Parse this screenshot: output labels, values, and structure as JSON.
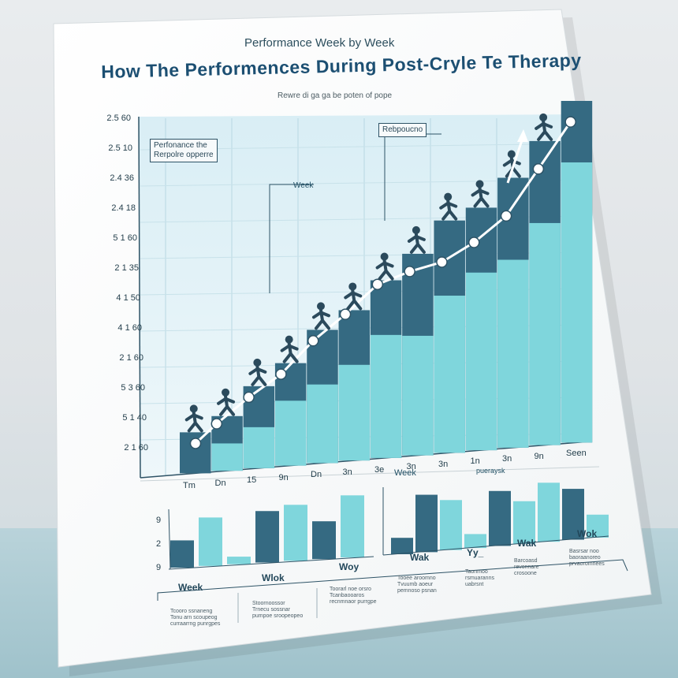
{
  "poster": {
    "supertitle": "Performance  Week by Week",
    "title": "How The Performences During Post-Cryle Te Therapy",
    "subtitle": "Rewre di ga ga be poten of pope"
  },
  "annotations": {
    "box_left_line1": "Perfonance the",
    "box_left_line2": "Rerpolre opperre",
    "box_right": "Rebpoucno",
    "week_callout": "Week"
  },
  "colors": {
    "dark": "#356a82",
    "light": "#7fd6dc",
    "line": "#ffffff",
    "text": "#1f4e63"
  },
  "chart_data": [
    {
      "type": "bar",
      "title": "How The Performences During Post-Cryle Te Therapy",
      "xlabel": "Week",
      "ylabel": "",
      "y_tick_labels": [
        "2.5 60",
        "2.5 10",
        "2.4 36",
        "2.4 18",
        "5 1 60",
        "2 1 35",
        "4 1 50",
        "4 1 60",
        "2 1 60",
        "5 3 60",
        "5 1 40",
        "2 1 60"
      ],
      "categories": [
        "Tm",
        "Dn",
        "15",
        "9n",
        "Dn",
        "3n",
        "3e",
        "3n",
        "3n",
        "1n",
        "3n",
        "9n",
        "Seen"
      ],
      "series": [
        {
          "name": "Dark",
          "values": [
            1.2,
            1.6,
            2.4,
            3.0,
            3.9,
            4.4,
            5.2,
            5.9,
            6.8,
            7.1,
            7.9,
            8.9,
            10.0
          ]
        },
        {
          "name": "Light",
          "values": [
            0.0,
            0.8,
            1.2,
            1.9,
            2.3,
            2.8,
            3.6,
            3.5,
            4.6,
            5.2,
            5.5,
            6.5,
            8.2
          ]
        },
        {
          "name": "Trend",
          "values": [
            0.9,
            1.4,
            2.1,
            2.7,
            3.6,
            4.3,
            5.1,
            5.4,
            5.6,
            6.1,
            6.8,
            8.1,
            9.4
          ]
        }
      ],
      "ylim": [
        0,
        10.5
      ]
    },
    {
      "type": "bar",
      "title": "",
      "xlabel": "Week",
      "y_tick_labels": [
        "9",
        "2",
        "9"
      ],
      "categories": [
        "",
        "",
        "",
        "",
        "",
        "",
        ""
      ],
      "values": [
        3.6,
        6.4,
        1.0,
        6.8,
        7.4,
        5.0,
        8.2
      ],
      "value_shades": [
        "dark",
        "light",
        "light",
        "dark",
        "light",
        "dark",
        "light"
      ],
      "labels_below": [
        "Week",
        "Wlok",
        "Woy"
      ]
    },
    {
      "type": "bar",
      "title": "pueraysk",
      "xlabel": "Week",
      "categories": [
        "",
        "",
        "",
        "",
        "",
        "",
        ""
      ],
      "values": [
        2.0,
        7.0,
        6.1,
        1.7,
        6.7,
        5.2,
        7.2
      ],
      "value_shades": [
        "dark",
        "dark",
        "light",
        "light",
        "dark",
        "light",
        "light"
      ],
      "extra_bars": [
        {
          "value": 6.2,
          "shade": "dark"
        },
        {
          "value": 2.8,
          "shade": "light"
        }
      ],
      "labels_below": [
        "Wak",
        "Yy_",
        "Wak",
        "Wok"
      ]
    }
  ],
  "footnotes": [
    "Tcooro ssnaneng\nTonu arn scoupeog\ncurraarrng punrgpes",
    "Stoornoossor\nTrnecu sossnar\npumpoe sroopeopeo",
    "Toorarl noe orsro\nTcanbaooaros\nrecnmnaor purrgpe",
    "Tooee aroomno\nTvuumb aoeur\npemnoso psnan",
    "Taonmoo\nrsmuaranns\nuabrsnt",
    "Barcoasd\nrevonnare\ncrosoone",
    "Basrsar noo\nbaoraanoreo\nprvaoromnees"
  ]
}
